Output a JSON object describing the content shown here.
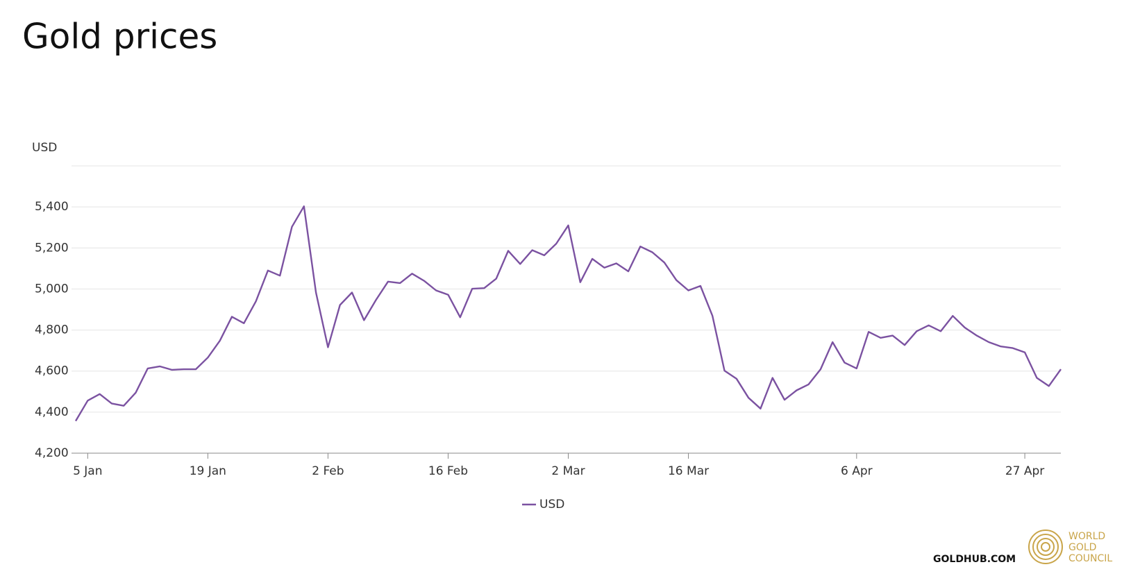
{
  "chart_data": {
    "type": "line",
    "title": "Gold prices",
    "y_label": "USD",
    "categories": [
      null,
      "5 Jan",
      null,
      null,
      null,
      null,
      null,
      null,
      null,
      null,
      null,
      "19 Jan",
      null,
      null,
      null,
      null,
      null,
      null,
      null,
      null,
      null,
      "2 Feb",
      null,
      null,
      null,
      null,
      null,
      null,
      null,
      null,
      null,
      "16 Feb",
      null,
      null,
      null,
      null,
      null,
      null,
      null,
      null,
      null,
      "2 Mar",
      null,
      null,
      null,
      null,
      null,
      null,
      null,
      null,
      null,
      "16 Mar",
      null,
      null,
      null,
      null,
      null,
      null,
      null,
      null,
      null,
      null,
      null,
      null,
      null,
      "6 Apr",
      null,
      null,
      null,
      null,
      null,
      null,
      null,
      null,
      null,
      null,
      null,
      null,
      null,
      "27 Apr",
      null,
      null,
      null
    ],
    "series": [
      {
        "name": "USD",
        "color": "#7b52a1",
        "values": [
          4357,
          4456,
          4488,
          4442,
          4431,
          4495,
          4613,
          4623,
          4606,
          4609,
          4609,
          4666,
          4748,
          4865,
          4833,
          4940,
          5090,
          5065,
          5303,
          5403,
          4983,
          4716,
          4922,
          4983,
          4848,
          4947,
          5036,
          5029,
          5075,
          5040,
          4993,
          4972,
          4862,
          5001,
          5004,
          5050,
          5186,
          5122,
          5189,
          5164,
          5221,
          5310,
          5033,
          5147,
          5104,
          5125,
          5086,
          5207,
          5179,
          5129,
          5043,
          4993,
          5015,
          4869,
          4602,
          4563,
          4470,
          4417,
          4567,
          4460,
          4506,
          4535,
          4609,
          4741,
          4641,
          4613,
          4791,
          4762,
          4773,
          4727,
          4794,
          4823,
          4794,
          4869,
          4812,
          4773,
          4741,
          4720,
          4712,
          4691,
          4567,
          4527,
          4609
        ]
      }
    ],
    "ylim": [
      4200,
      5600
    ],
    "yticks": [
      {
        "value": 4200,
        "label": "4,200"
      },
      {
        "value": 4400,
        "label": "4,400"
      },
      {
        "value": 4600,
        "label": "4,600"
      },
      {
        "value": 4800,
        "label": "4,800"
      },
      {
        "value": 5000,
        "label": "5,000"
      },
      {
        "value": 5200,
        "label": "5,200"
      },
      {
        "value": 5400,
        "label": "5,400"
      }
    ],
    "grid": true,
    "legend": "bottom",
    "footer": {
      "site": "GOLDHUB.COM",
      "logo": [
        "WORLD",
        "GOLD",
        "COUNCIL"
      ]
    }
  }
}
